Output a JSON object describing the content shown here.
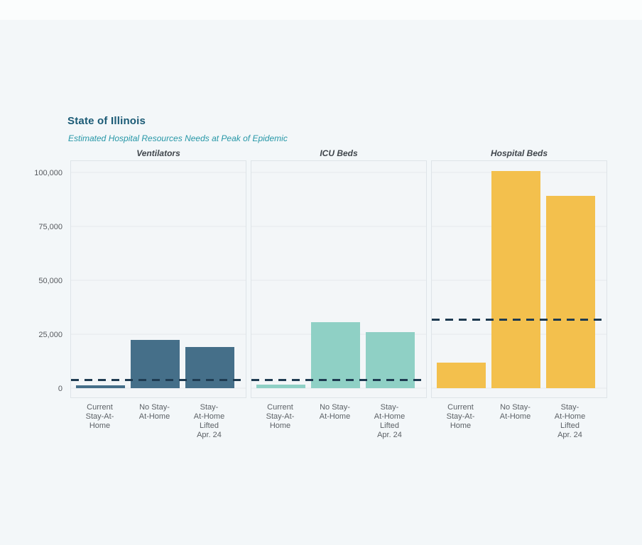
{
  "page": {
    "background": "#f3f7f9",
    "top_strip_color": "#fbfdfd"
  },
  "header": {
    "title": "State of Illinois",
    "subtitle": "Estimated Hospital Resources Needs at Peak of Epidemic",
    "title_color": "#1a5a75",
    "subtitle_color": "#2697a7"
  },
  "chart_data": {
    "type": "bar",
    "title": "State of Illinois",
    "subtitle": "Estimated Hospital Resources Needs at Peak of Epidemic",
    "xlabel": "",
    "ylabel": "",
    "ylim": [
      0,
      106000
    ],
    "yticks": [
      0,
      25000,
      50000,
      75000,
      100000
    ],
    "ytick_labels": [
      "0",
      "25,000",
      "50,000",
      "75,000",
      "100,000"
    ],
    "grid": true,
    "legend": "none",
    "categories": [
      "Current Stay-At-Home",
      "No Stay-At-Home",
      "Stay-At-Home Lifted Apr. 24"
    ],
    "category_label_lines": [
      [
        "Current",
        "Stay-At-",
        "Home"
      ],
      [
        "No Stay-",
        "At-Home"
      ],
      [
        "Stay-",
        "At-Home",
        "Lifted",
        "Apr. 24"
      ]
    ],
    "reference_line_style": "dashed",
    "reference_line_color": "#1e3a50",
    "reference_line_meaning": "available capacity",
    "panels": [
      {
        "title": "Ventilators",
        "bar_color": "#456f89",
        "values": [
          1300,
          22400,
          19000
        ],
        "capacity_line": 3200
      },
      {
        "title": "ICU Beds",
        "bar_color": "#8fd0c5",
        "values": [
          1600,
          30700,
          26100
        ],
        "capacity_line": 3200
      },
      {
        "title": "Hospital Beds",
        "bar_color": "#f3c04d",
        "values": [
          12000,
          100500,
          89200
        ],
        "capacity_line": 31200
      }
    ]
  }
}
